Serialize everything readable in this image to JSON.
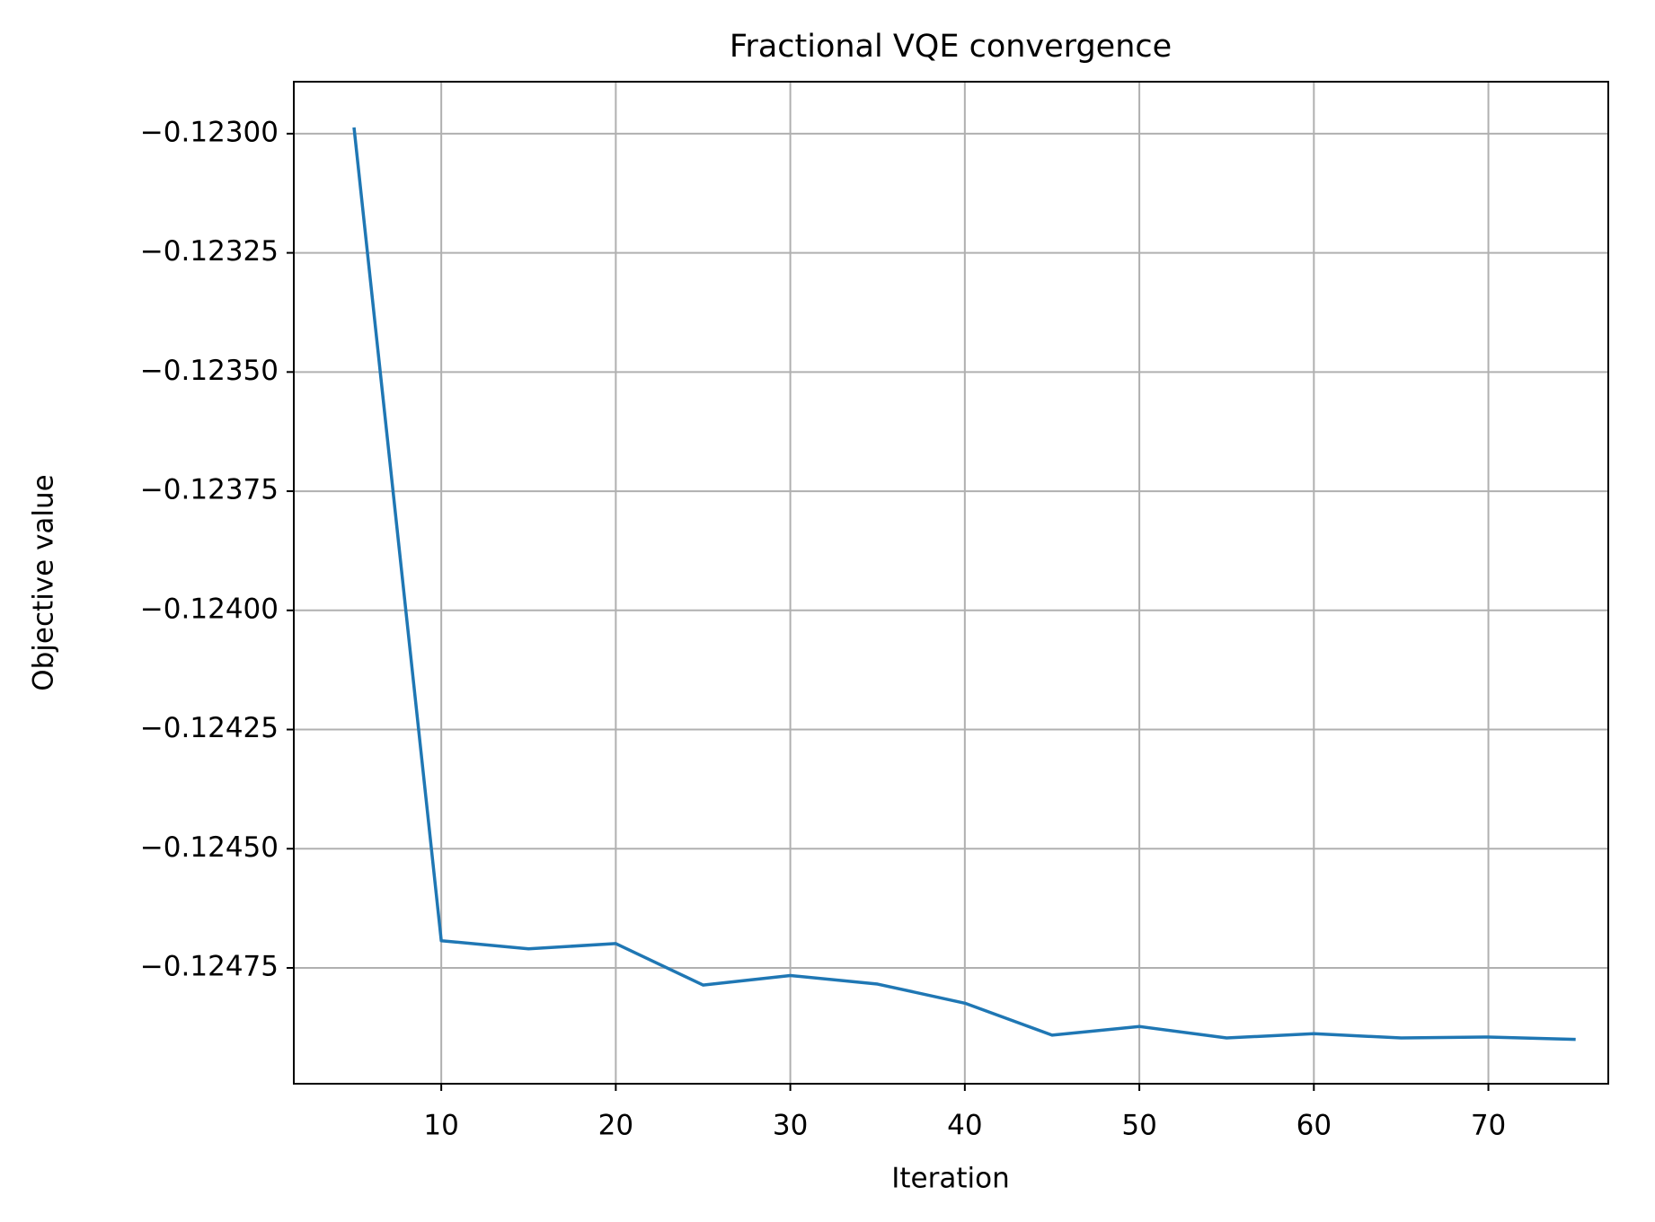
{
  "chart_data": {
    "type": "line",
    "title": "Fractional VQE convergence",
    "x_label": "Iteration",
    "y_label": "Objective value",
    "x": [
      5,
      10,
      15,
      20,
      25,
      30,
      35,
      40,
      45,
      50,
      55,
      60,
      65,
      70,
      75
    ],
    "series": [
      {
        "name": "Objective value",
        "color": "#1f77b4",
        "values": [
          -0.122987,
          -0.124693,
          -0.12471,
          -0.124699,
          -0.124786,
          -0.124766,
          -0.124784,
          -0.124824,
          -0.124891,
          -0.124873,
          -0.124897,
          -0.124888,
          -0.124897,
          -0.124895,
          -0.1249
        ]
      }
    ],
    "xlim": [
      1.55,
      76.87
    ],
    "xticks": [
      10,
      20,
      30,
      40,
      50,
      60,
      70
    ],
    "ylim": [
      -0.124993,
      -0.122891
    ],
    "yticks": [
      {
        "value": -0.123,
        "label": "−0.12300"
      },
      {
        "value": -0.12325,
        "label": "−0.12325"
      },
      {
        "value": -0.1235,
        "label": "−0.12350"
      },
      {
        "value": -0.12375,
        "label": "−0.12375"
      },
      {
        "value": -0.124,
        "label": "−0.12400"
      },
      {
        "value": -0.12425,
        "label": "−0.12425"
      },
      {
        "value": -0.1245,
        "label": "−0.12450"
      },
      {
        "value": -0.12475,
        "label": "−0.12475"
      }
    ],
    "grid": true
  }
}
